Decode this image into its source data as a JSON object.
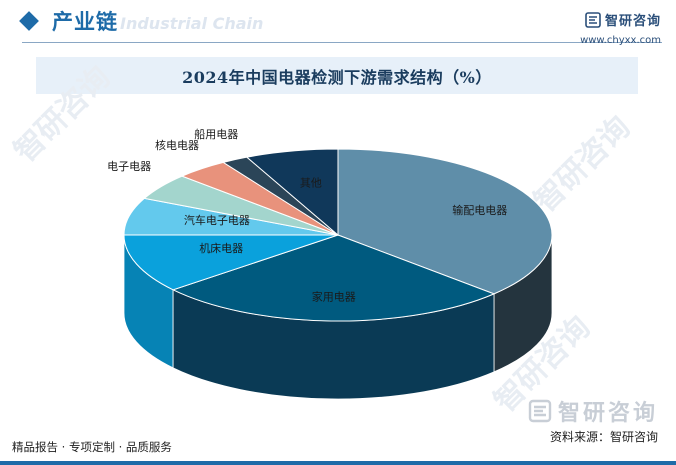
{
  "header": {
    "section_title": "产业链",
    "watermark_text": "Industrial Chain",
    "brand_name": "智研咨询",
    "brand_url": "www.chyxx.com"
  },
  "chart_data": {
    "type": "pie",
    "title": "2024年中国电器检测下游需求结构（%）",
    "categories": [
      "输配电电器",
      "家用电器",
      "机床电器",
      "汽车电子电器",
      "电子电器",
      "核电电器",
      "船用电器",
      "其他"
    ],
    "values": [
      37,
      27,
      11,
      7,
      5,
      4,
      2,
      7
    ],
    "colors": [
      "#5f8ea9",
      "#005a7f",
      "#0aa1dc",
      "#63c9ed",
      "#a3d5cd",
      "#e8927c",
      "#2b4558",
      "#10385a"
    ],
    "side_colors": [
      "#24343e",
      "#0a3a55",
      "#0683b5",
      "#33a6cc",
      "#7ab6ad",
      "#c06a55",
      "#1c2d3a",
      "#0b2a45"
    ]
  },
  "footer": {
    "tagline": "精品报告 · 专项定制 · 品质服务",
    "source": "资料来源：智研咨询",
    "logo_text": "智研咨询"
  }
}
